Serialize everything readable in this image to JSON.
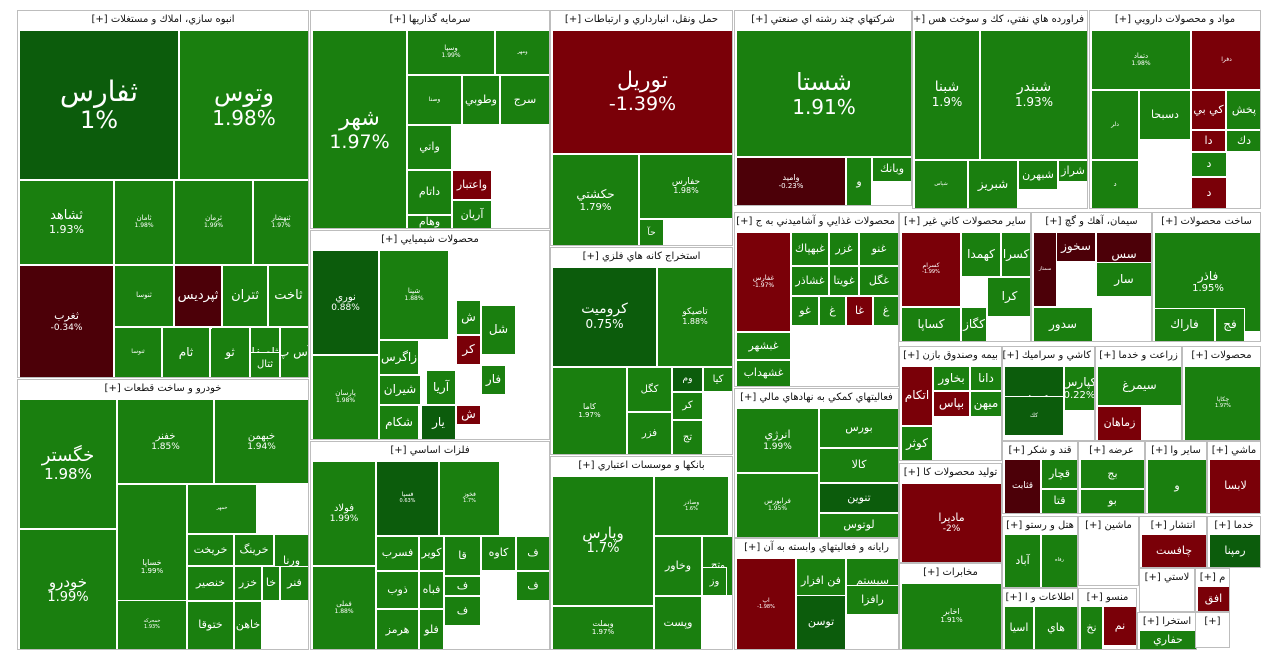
{
  "chart_data": {
    "type": "treemap",
    "colors": {
      "up": "#1a7f0f",
      "up_strong": "#0c5c0c",
      "down": "#7a0008",
      "down_dark": "#4c0008"
    },
    "sectors": [
      {
        "title": "انبوه سازي، املاك و مستغلات [+]",
        "tiles": [
          {
            "name": "ثفارس",
            "change": "1%"
          },
          {
            "name": "وتوس",
            "change": "1.98%"
          },
          {
            "name": "ثشاهد",
            "change": "1.93%"
          },
          {
            "name": "ثامان",
            "change": "1.98%"
          },
          {
            "name": "ثرمان",
            "change": "1.99%"
          },
          {
            "name": "ثنهشار",
            "change": "1.97%"
          },
          {
            "name": "ثغرب",
            "change": "-0.34%"
          },
          {
            "name": "ثنوسا",
            "change": ""
          },
          {
            "name": "ثپردیس",
            "change": ""
          },
          {
            "name": "ثتران",
            "change": ""
          },
          {
            "name": "ثاخت",
            "change": ""
          },
          {
            "name": "ثنوسا",
            "change": ""
          },
          {
            "name": "ثام",
            "change": ""
          },
          {
            "name": "ثو",
            "change": ""
          },
          {
            "name": "ثاصفا",
            "change": ""
          },
          {
            "name": "آس پ",
            "change": ""
          },
          {
            "name": "ثعمرا",
            "change": ""
          },
          {
            "name": "ثتال",
            "change": ""
          }
        ]
      },
      {
        "title": "سرمايه گذاريها [+]",
        "tiles": [
          {
            "name": "شهر",
            "change": "1.97%"
          },
          {
            "name": "وسپا",
            "change": "1.99%"
          },
          {
            "name": "ومهر",
            "change": ""
          },
          {
            "name": "وصنا",
            "change": ""
          },
          {
            "name": "وطوبي",
            "change": ""
          },
          {
            "name": "سرج",
            "change": ""
          },
          {
            "name": "واتي",
            "change": ""
          },
          {
            "name": "داتام",
            "change": ""
          },
          {
            "name": "واعتبار",
            "change": ""
          },
          {
            "name": "وهام",
            "change": ""
          },
          {
            "name": "آريان",
            "change": ""
          }
        ]
      },
      {
        "title": "حمل ونقل، انبارداري و ارتباطات [+]",
        "tiles": [
          {
            "name": "توریل",
            "change": "-1.39%"
          },
          {
            "name": "حكشتي",
            "change": "1.79%"
          },
          {
            "name": "حفارس",
            "change": "1.98%"
          },
          {
            "name": "حآ",
            "change": ""
          }
        ]
      },
      {
        "title": "شركتهاي چند رشته اي صنعتي [+]",
        "tiles": [
          {
            "name": "شستا",
            "change": "1.91%"
          },
          {
            "name": "واميد",
            "change": "-0.23%"
          },
          {
            "name": "وبانك",
            "change": ""
          },
          {
            "name": "و",
            "change": ""
          }
        ]
      },
      {
        "title": "فراورده هاي نفتي، كك و سوخت هس [+]",
        "tiles": [
          {
            "name": "شبنا",
            "change": "1.9%"
          },
          {
            "name": "شبندر",
            "change": "1.93%"
          },
          {
            "name": "شپاس",
            "change": ""
          },
          {
            "name": "شبریز",
            "change": ""
          },
          {
            "name": "شبهرن",
            "change": ""
          },
          {
            "name": "شراز",
            "change": ""
          }
        ]
      },
      {
        "title": "مواد و محصولات دارويي [+]",
        "tiles": [
          {
            "name": "دتماد",
            "change": "1.98%"
          },
          {
            "name": "دفرا",
            "change": ""
          },
          {
            "name": "دلر",
            "change": ""
          },
          {
            "name": "كي بي",
            "change": ""
          },
          {
            "name": "پخش",
            "change": ""
          },
          {
            "name": "دك",
            "change": ""
          },
          {
            "name": "دا",
            "change": ""
          },
          {
            "name": "د",
            "change": ""
          },
          {
            "name": "د",
            "change": ""
          },
          {
            "name": "د",
            "change": ""
          },
          {
            "name": "دسبحا",
            "change": ""
          }
        ]
      },
      {
        "title": "محصولات شيميايي [+]",
        "tiles": [
          {
            "name": "نوري",
            "change": "0.88%"
          },
          {
            "name": "شپنا",
            "change": "1.88%"
          },
          {
            "name": "پارسان",
            "change": "1.98%"
          },
          {
            "name": "زاگرس",
            "change": ""
          },
          {
            "name": "شيران",
            "change": ""
          },
          {
            "name": "شكام",
            "change": ""
          },
          {
            "name": "آريا",
            "change": ""
          },
          {
            "name": "ش",
            "change": ""
          },
          {
            "name": "فار",
            "change": ""
          },
          {
            "name": "كر",
            "change": ""
          },
          {
            "name": "ش",
            "change": ""
          },
          {
            "name": "شل",
            "change": ""
          },
          {
            "name": "يار",
            "change": ""
          }
        ]
      },
      {
        "title": "استخراج كانه هاي فلزي [+]",
        "tiles": [
          {
            "name": "كروميت",
            "change": "0.75%"
          },
          {
            "name": "تاصيكو",
            "change": "1.88%"
          },
          {
            "name": "كاما",
            "change": "1.97%"
          },
          {
            "name": "كگل",
            "change": ""
          },
          {
            "name": "فزر",
            "change": ""
          },
          {
            "name": "وم",
            "change": ""
          },
          {
            "name": "كيا",
            "change": ""
          },
          {
            "name": "كر",
            "change": ""
          },
          {
            "name": "تج",
            "change": ""
          }
        ]
      },
      {
        "title": "خودرو و ساخت قطعات [+]",
        "tiles": [
          {
            "name": "خگستر",
            "change": "1.98%"
          },
          {
            "name": "خفنر",
            "change": "1.85%"
          },
          {
            "name": "خبهمن",
            "change": "1.94%"
          },
          {
            "name": "خودرو",
            "change": "1.99%"
          },
          {
            "name": "خساپا",
            "change": "1.99%"
          },
          {
            "name": "خمهر",
            "change": ""
          },
          {
            "name": "خريخت",
            "change": ""
          },
          {
            "name": "خنصير",
            "change": ""
          },
          {
            "name": "خرينگ",
            "change": ""
          },
          {
            "name": "ورنا",
            "change": ""
          },
          {
            "name": "ختوقا",
            "change": ""
          },
          {
            "name": "خزر",
            "change": ""
          },
          {
            "name": "خا",
            "change": ""
          },
          {
            "name": "فنر",
            "change": ""
          },
          {
            "name": "خاهن",
            "change": ""
          },
          {
            "name": "خمحركه",
            "change": "1.93%"
          }
        ]
      },
      {
        "title": "فلزات اساسي [+]",
        "tiles": [
          {
            "name": "فولاد",
            "change": "1.99%"
          },
          {
            "name": "فملی",
            "change": "1.88%"
          },
          {
            "name": "فسپا",
            "change": "0.63%"
          },
          {
            "name": "فخوز",
            "change": "1.7%"
          },
          {
            "name": "فسرب",
            "change": ""
          },
          {
            "name": "ذوب",
            "change": ""
          },
          {
            "name": "هرمز",
            "change": ""
          },
          {
            "name": "كوير",
            "change": ""
          },
          {
            "name": "فلو",
            "change": ""
          },
          {
            "name": "قا",
            "change": ""
          },
          {
            "name": "فباه",
            "change": ""
          },
          {
            "name": "كاوه",
            "change": ""
          },
          {
            "name": "ف",
            "change": ""
          },
          {
            "name": "ف",
            "change": ""
          },
          {
            "name": "ف",
            "change": ""
          },
          {
            "name": "ف",
            "change": ""
          }
        ]
      },
      {
        "title": "بانكها و موسسات اعتباري [+]",
        "tiles": [
          {
            "name": "وپارس",
            "change": "1.7%"
          },
          {
            "name": "وبملت",
            "change": "1.97%"
          },
          {
            "name": "وصادر",
            "change": "1.6%"
          },
          {
            "name": "وخاور",
            "change": ""
          },
          {
            "name": "وپست",
            "change": ""
          },
          {
            "name": "وتج",
            "change": ""
          },
          {
            "name": "وز",
            "change": ""
          }
        ]
      },
      {
        "title": "محصولات غذايي و آشاميدني به ج [+]",
        "tiles": [
          {
            "name": "غفارس",
            "change": "-1.97%"
          },
          {
            "name": "غبهپاك",
            "change": ""
          },
          {
            "name": "غشاذر",
            "change": ""
          },
          {
            "name": "غزر",
            "change": ""
          },
          {
            "name": "غويتا",
            "change": ""
          },
          {
            "name": "غنو",
            "change": ""
          },
          {
            "name": "غگل",
            "change": ""
          },
          {
            "name": "غبشهر",
            "change": ""
          },
          {
            "name": "غشهداب",
            "change": ""
          },
          {
            "name": "غو",
            "change": ""
          },
          {
            "name": "غ",
            "change": ""
          },
          {
            "name": "غا",
            "change": ""
          },
          {
            "name": "غ",
            "change": ""
          }
        ]
      },
      {
        "title": "ساير محصولات كاني غير [+]",
        "tiles": [
          {
            "name": "كسرام",
            "change": "-1.99%"
          },
          {
            "name": "كهمدا",
            "change": ""
          },
          {
            "name": "كسرا",
            "change": ""
          },
          {
            "name": "كرا",
            "change": ""
          },
          {
            "name": "كگاز",
            "change": ""
          },
          {
            "name": "كساپا",
            "change": ""
          }
        ]
      },
      {
        "title": "سيمان، آهك و گچ [+]",
        "tiles": [
          {
            "name": "سخوز",
            "change": ""
          },
          {
            "name": "سس",
            "change": ""
          },
          {
            "name": "سار",
            "change": ""
          },
          {
            "name": "سدور",
            "change": ""
          },
          {
            "name": "سمتاز",
            "change": ""
          }
        ]
      },
      {
        "title": "ساخت محصولات [+]",
        "tiles": [
          {
            "name": "فاذر",
            "change": "1.95%"
          },
          {
            "name": "فاراك",
            "change": ""
          },
          {
            "name": "فج",
            "change": ""
          }
        ]
      },
      {
        "title": "فعاليتهاي كمكي به نهادهاي مالي [+]",
        "tiles": [
          {
            "name": "انرژي",
            "change": "1.99%"
          },
          {
            "name": "فرابورس",
            "change": "1.95%"
          },
          {
            "name": "بورس",
            "change": ""
          },
          {
            "name": "كالا",
            "change": ""
          },
          {
            "name": "تنوين",
            "change": ""
          },
          {
            "name": "لوتوس",
            "change": ""
          }
        ]
      },
      {
        "title": "بيمه وصندوق بازن [+]",
        "tiles": [
          {
            "name": "اتكام",
            "change": ""
          },
          {
            "name": "بخاور",
            "change": ""
          },
          {
            "name": "دانا",
            "change": ""
          },
          {
            "name": "بپاس",
            "change": ""
          },
          {
            "name": "ميهن",
            "change": ""
          },
          {
            "name": "كوثر",
            "change": ""
          }
        ]
      },
      {
        "title": "كاشي و سراميك [+]",
        "tiles": [
          {
            "name": "كترام",
            "change": ""
          },
          {
            "name": "كپارس",
            "change": "0.22%"
          },
          {
            "name": "كك",
            "change": ""
          }
        ]
      },
      {
        "title": "زراعت و خدما [+]",
        "tiles": [
          {
            "name": "سيمرغ",
            "change": ""
          },
          {
            "name": "زماهان",
            "change": ""
          }
        ]
      },
      {
        "title": "محصولات [+]",
        "tiles": [
          {
            "name": "چكاپا",
            "change": "1.97%"
          }
        ]
      },
      {
        "title": "رايانه و فعاليتهاي وابسته به آن [+]",
        "tiles": [
          {
            "name": "اپ",
            "change": "-1.98%"
          },
          {
            "name": "فن افزار",
            "change": ""
          },
          {
            "name": "سيستم",
            "change": ""
          },
          {
            "name": "رافزا",
            "change": ""
          },
          {
            "name": "توسن",
            "change": ""
          }
        ]
      },
      {
        "title": "توليد محصولات كا [+]",
        "tiles": [
          {
            "name": "مادیرا",
            "change": "-2%"
          }
        ]
      },
      {
        "title": "مخابرات [+]",
        "tiles": [
          {
            "name": "اخابر",
            "change": "1.91%"
          }
        ]
      },
      {
        "title": "قند و شكر [+]",
        "tiles": [
          {
            "name": "قثابت",
            "change": ""
          },
          {
            "name": "قچار",
            "change": ""
          },
          {
            "name": "قتا",
            "change": ""
          }
        ]
      },
      {
        "title": "عرضه [+]",
        "tiles": [
          {
            "name": "بج",
            "change": ""
          },
          {
            "name": "بو",
            "change": ""
          }
        ]
      },
      {
        "title": "ساير وا [+]",
        "tiles": [
          {
            "name": "و",
            "change": ""
          }
        ]
      },
      {
        "title": "ماشي [+]",
        "tiles": [
          {
            "name": "لابسا",
            "change": ""
          }
        ]
      },
      {
        "title": "هتل و رستو [+]",
        "tiles": [
          {
            "name": "آباد",
            "change": ""
          },
          {
            "name": "رفاه",
            "change": ""
          }
        ]
      },
      {
        "title": "ماشين [+]",
        "tiles": []
      },
      {
        "title": "انتشار [+]",
        "tiles": [
          {
            "name": "چافست",
            "change": ""
          }
        ]
      },
      {
        "title": "خدما [+]",
        "tiles": [
          {
            "name": "رمپنا",
            "change": ""
          }
        ]
      },
      {
        "title": "لاستي [+]",
        "tiles": []
      },
      {
        "title": "م [+]",
        "tiles": [
          {
            "name": "افق",
            "change": ""
          }
        ]
      },
      {
        "title": "اطلاعات و ا [+]",
        "tiles": [
          {
            "name": "اسيا",
            "change": ""
          },
          {
            "name": "هاي",
            "change": ""
          }
        ]
      },
      {
        "title": "منسو [+]",
        "tiles": [
          {
            "name": "نخ",
            "change": ""
          },
          {
            "name": "نم",
            "change": ""
          }
        ]
      },
      {
        "title": "استخرا [+]",
        "tiles": [
          {
            "name": "حفاري",
            "change": ""
          }
        ]
      },
      {
        "title": "[+]",
        "tiles": []
      }
    ]
  }
}
